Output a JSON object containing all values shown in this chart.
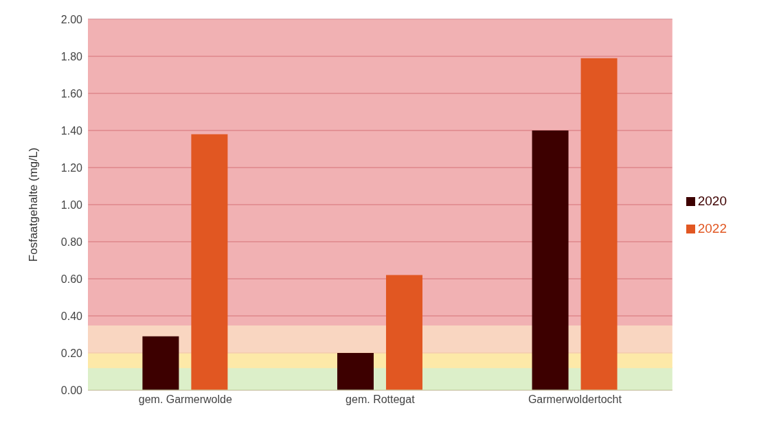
{
  "chart_data": {
    "type": "bar",
    "ylabel": "Fosfaatgehalte (mg/L)",
    "categories": [
      "gem. Garmerwolde",
      "gem. Rottegat",
      "Garmerwoldertocht"
    ],
    "series": [
      {
        "name": "2020",
        "color": "#3d0000",
        "values": [
          0.29,
          0.2,
          1.4
        ]
      },
      {
        "name": "2022",
        "color": "#e15722",
        "values": [
          1.38,
          0.62,
          1.79
        ]
      }
    ],
    "ylim": [
      0,
      2
    ],
    "yticks": [
      {
        "value": 0,
        "label": "0.00"
      },
      {
        "value": 0.2,
        "label": "0.20"
      },
      {
        "value": 0.4,
        "label": "0.40"
      },
      {
        "value": 0.6,
        "label": "0.60"
      },
      {
        "value": 0.8,
        "label": "0.80"
      },
      {
        "value": 1,
        "label": "1.00"
      },
      {
        "value": 1.2,
        "label": "1.20"
      },
      {
        "value": 1.4,
        "label": "1.40"
      },
      {
        "value": 1.6,
        "label": "1.60"
      },
      {
        "value": 1.8,
        "label": "1.80"
      },
      {
        "value": 2,
        "label": "2.00"
      }
    ],
    "bands": [
      {
        "axis": "y",
        "from": 0,
        "to": 0.12,
        "color": "#dcefc9"
      },
      {
        "axis": "y",
        "from": 0.12,
        "to": 0.2,
        "color": "#fde9a8"
      },
      {
        "axis": "y",
        "from": 0.2,
        "to": 0.35,
        "color": "#f9d6c1"
      },
      {
        "axis": "y",
        "from": 0.35,
        "to": 2,
        "color": "#f1b1b3"
      }
    ],
    "grid": "y",
    "legend": "right"
  }
}
